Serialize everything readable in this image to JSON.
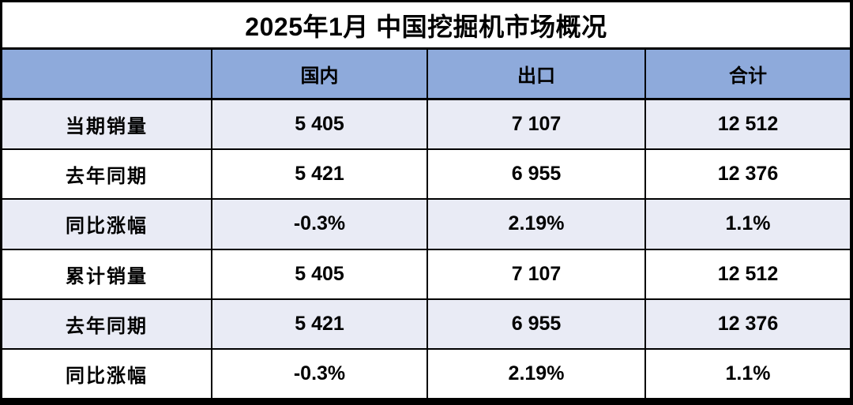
{
  "chart_data": {
    "type": "table",
    "title": "2025年1月 中国挖掘机市场概况",
    "columns": [
      "",
      "国内",
      "出口",
      "合计"
    ],
    "rows": [
      {
        "label": "当期销量",
        "values": [
          "5 405",
          "7 107",
          "12 512"
        ]
      },
      {
        "label": "去年同期",
        "values": [
          "5 421",
          "6 955",
          "12 376"
        ]
      },
      {
        "label": "同比涨幅",
        "values": [
          "-0.3%",
          "2.19%",
          "1.1%"
        ]
      },
      {
        "label": "累计销量",
        "values": [
          "5 405",
          "7 107",
          "12 512"
        ]
      },
      {
        "label": "去年同期",
        "values": [
          "5 421",
          "6 955",
          "12 376"
        ]
      },
      {
        "label": "同比涨幅",
        "values": [
          "-0.3%",
          "2.19%",
          "1.1%"
        ]
      }
    ]
  },
  "colors": {
    "header_bg": "#8EAADB",
    "alt_row_bg": "#E9EBF5",
    "border": "#000000",
    "text": "#000000",
    "background": "#FFFFFF"
  }
}
